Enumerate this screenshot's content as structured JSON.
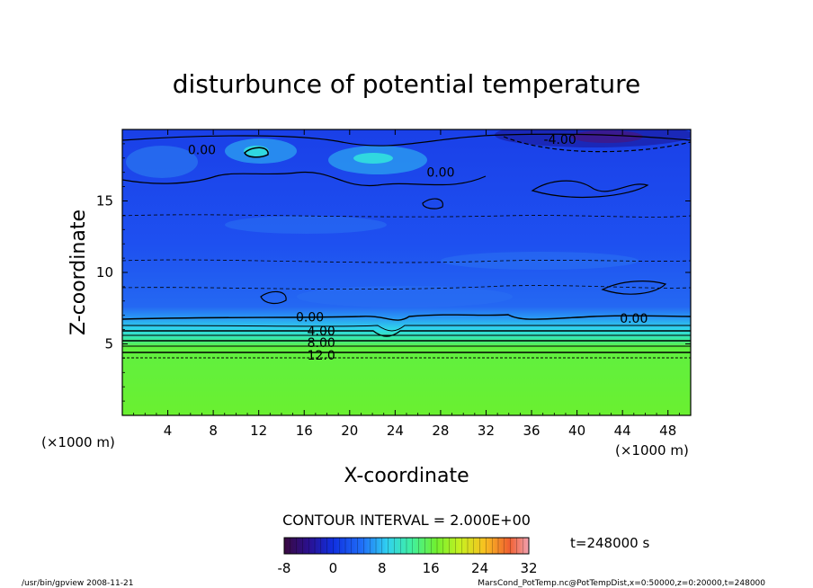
{
  "chart_data": {
    "type": "heatmap",
    "title": "disturbunce of potential temperature",
    "xlabel": "X-coordinate",
    "ylabel": "Z-coordinate",
    "x_unit_left": "(×1000 m)",
    "x_unit_right": "(×1000 m)",
    "xlim": [
      0,
      50
    ],
    "ylim": [
      0,
      20
    ],
    "x_ticks": [
      4,
      8,
      12,
      16,
      20,
      24,
      28,
      32,
      36,
      40,
      44,
      48
    ],
    "y_ticks": [
      5,
      10,
      15
    ],
    "contour_interval": "CONTOUR INTERVAL = 2.000E+00",
    "contour_labels": [
      {
        "text": "0.00",
        "x": 7.0,
        "z": 18.6
      },
      {
        "text": "0.00",
        "x": 28.0,
        "z": 17.0
      },
      {
        "text": "-4.00",
        "x": 38.5,
        "z": 19.3
      },
      {
        "text": "0.00",
        "x": 16.5,
        "z": 6.9
      },
      {
        "text": "4.00",
        "x": 17.5,
        "z": 5.9
      },
      {
        "text": "8.00",
        "x": 17.5,
        "z": 5.1
      },
      {
        "text": "12.0",
        "x": 17.5,
        "z": 4.2
      },
      {
        "text": "0.00",
        "x": 45.0,
        "z": 6.8
      }
    ],
    "colorbar": {
      "min": -8,
      "max": 32,
      "tick_labels": [
        "-8",
        "0",
        "8",
        "16",
        "24",
        "32"
      ]
    },
    "time_label": "t=248000 s"
  },
  "footer": {
    "left": "/usr/bin/gpview   2008-11-21",
    "right": "MarsCond_PotTemp.nc@PotTempDist,x=0:50000,z=0:20000,t=248000"
  }
}
